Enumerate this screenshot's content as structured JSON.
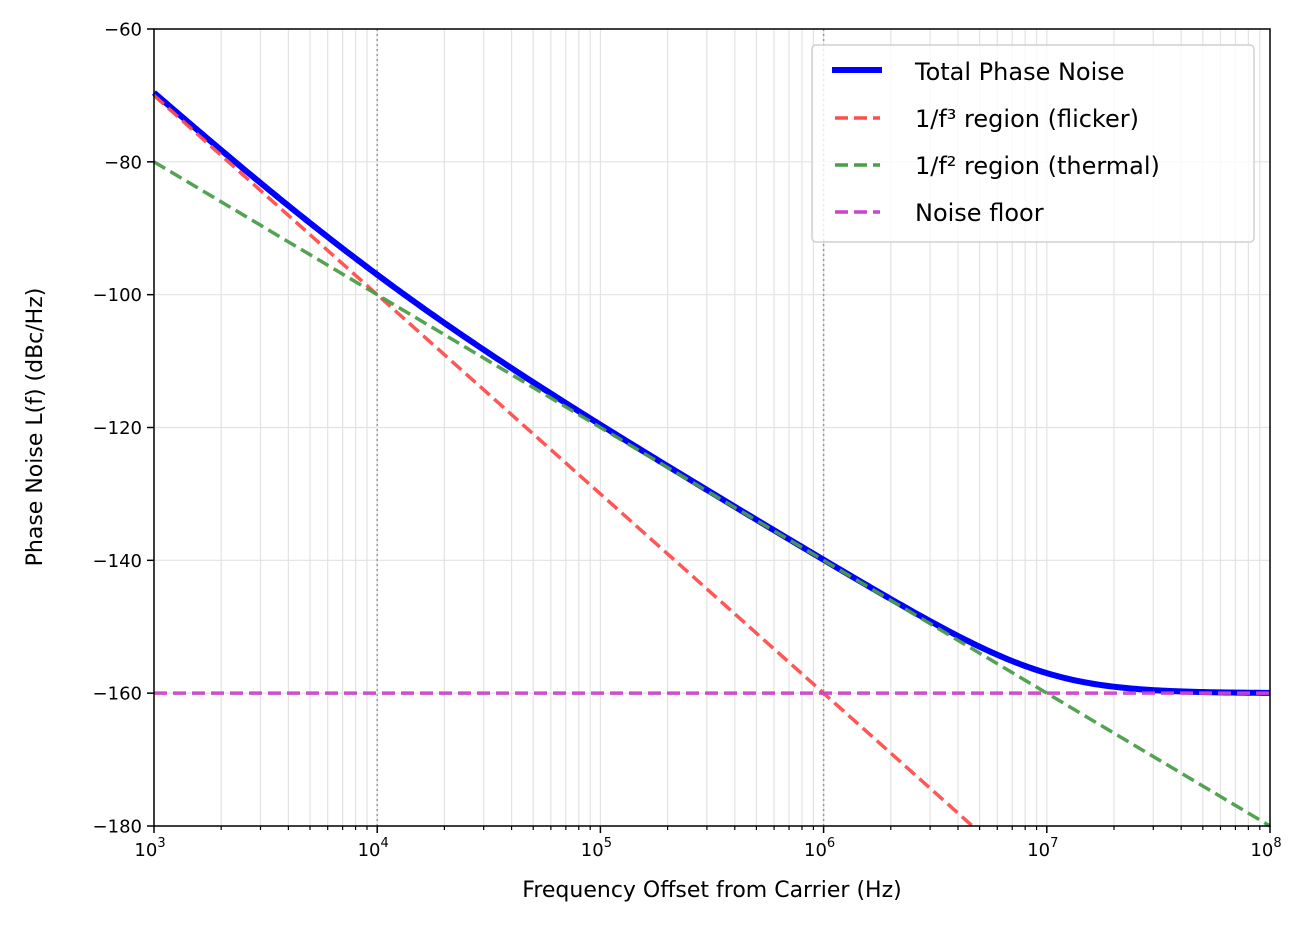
{
  "chart_data": {
    "type": "line",
    "title": "",
    "xlabel": "Frequency Offset from Carrier (Hz)",
    "ylabel": "Phase Noise L(f) (dBc/Hz)",
    "xscale": "log",
    "xlim": [
      1000,
      100000000
    ],
    "ylim": [
      -180,
      -60
    ],
    "grid": true,
    "legend_position": "top-right",
    "x_ticks": [
      {
        "value": 1000,
        "base": "10",
        "exp": "3"
      },
      {
        "value": 10000,
        "base": "10",
        "exp": "4"
      },
      {
        "value": 100000,
        "base": "10",
        "exp": "5"
      },
      {
        "value": 1000000,
        "base": "10",
        "exp": "6"
      },
      {
        "value": 10000000,
        "base": "10",
        "exp": "7"
      },
      {
        "value": 100000000,
        "base": "10",
        "exp": "8"
      }
    ],
    "y_ticks": [
      {
        "value": -60,
        "label": "−60"
      },
      {
        "value": -80,
        "label": "−80"
      },
      {
        "value": -100,
        "label": "−100"
      },
      {
        "value": -120,
        "label": "−120"
      },
      {
        "value": -140,
        "label": "−140"
      },
      {
        "value": -160,
        "label": "−160"
      },
      {
        "value": -180,
        "label": "−180"
      }
    ],
    "vertical_markers": [
      10000,
      1000000
    ],
    "series": [
      {
        "name": "Total Phase Noise",
        "color": "#0000ff",
        "style": "solid",
        "x": [
          1000,
          3162,
          10000,
          31623,
          100000,
          316228,
          1000000,
          3162278,
          10000000,
          31622777,
          100000000
        ],
        "values": [
          -69.6,
          -84.6,
          -97.0,
          -109.7,
          -119.9,
          -130.0,
          -140.0,
          -149.6,
          -157.0,
          -159.6,
          -160.0
        ]
      },
      {
        "name": "1/f³ region (flicker)",
        "color": "#ff4d4d",
        "style": "dashed",
        "x": [
          1000,
          10000,
          100000,
          1000000,
          4641589
        ],
        "values": [
          -70,
          -100,
          -130,
          -160,
          -180
        ]
      },
      {
        "name": "1/f² region (thermal)",
        "color": "#4a9e4a",
        "style": "dashed",
        "x": [
          1000,
          10000,
          100000,
          1000000,
          10000000,
          100000000
        ],
        "values": [
          -80,
          -100,
          -120,
          -140,
          -160,
          -180
        ]
      },
      {
        "name": "Noise floor",
        "color": "#cc44cc",
        "style": "dashed",
        "x": [
          1000,
          100000000
        ],
        "values": [
          -160,
          -160
        ]
      }
    ]
  }
}
